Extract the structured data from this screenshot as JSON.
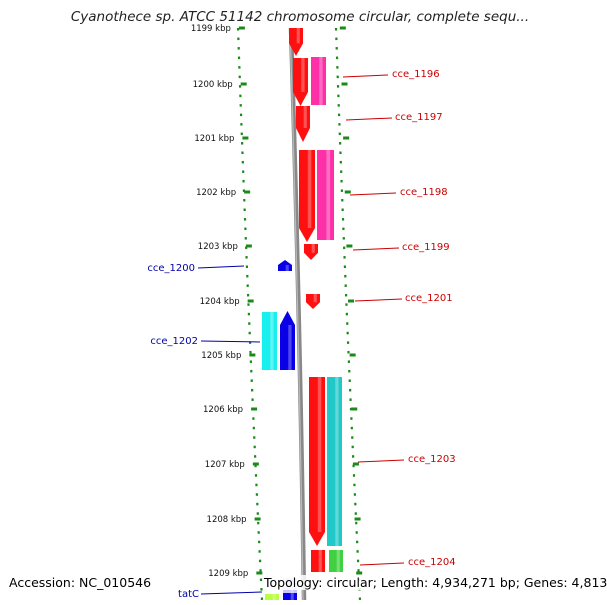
{
  "title": "Cyanothece sp. ATCC 51142 chromosome circular, complete sequ...",
  "footer": {
    "accession": "Accession: NC_010546",
    "summary": "Topology: circular; Length: 4,934,271 bp; Genes: 4,813"
  },
  "ruler": {
    "labels": [
      "1199 kbp",
      "1200 kbp",
      "1201 kbp",
      "1202 kbp",
      "1203 kbp",
      "1204 kbp",
      "1205 kbp",
      "1206 kbp",
      "1207 kbp",
      "1208 kbp",
      "1209 kbp"
    ]
  },
  "colors": {
    "red": "#ff1010",
    "magenta": "#ff2fa8",
    "blue": "#0a00e8",
    "cyan": "#18f0f0",
    "teal": "#20c8c8",
    "green": "#40d040",
    "lime": "#b8ff40",
    "lavender": "#c8c8ff",
    "tick": "#1a8a1a",
    "backbone": "#888888",
    "label_red": "#cc0000",
    "label_blue": "#0000aa"
  },
  "genes": {
    "right": [
      {
        "name": "cce_1196"
      },
      {
        "name": "cce_1197"
      },
      {
        "name": "cce_1198"
      },
      {
        "name": "cce_1199"
      },
      {
        "name": "cce_1201"
      },
      {
        "name": "cce_1203"
      },
      {
        "name": "cce_1204"
      }
    ],
    "left": [
      {
        "name": "cce_1200"
      },
      {
        "name": "cce_1202"
      },
      {
        "name": "tatC"
      }
    ]
  }
}
